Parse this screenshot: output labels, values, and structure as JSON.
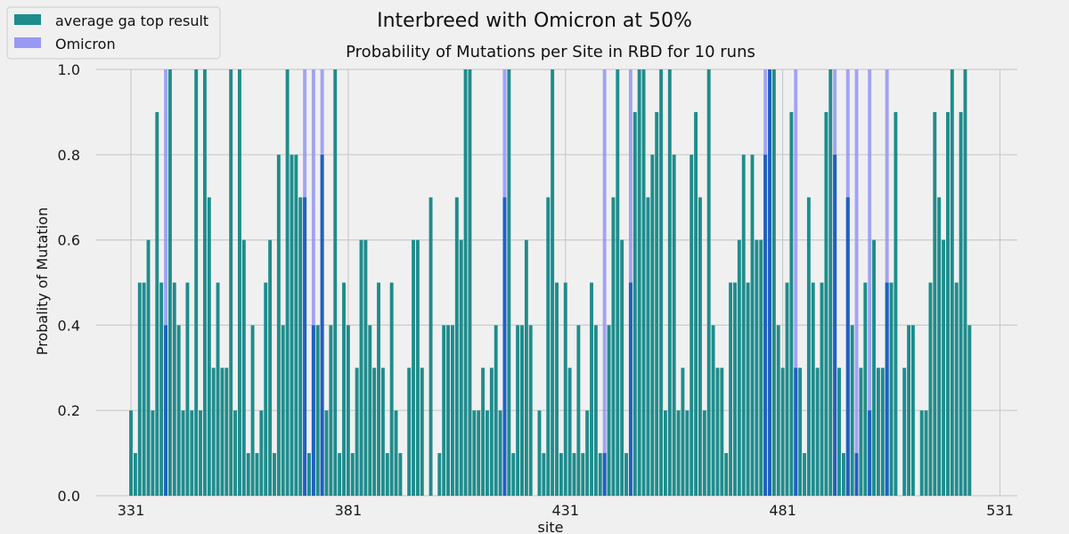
{
  "suptitle": "Interbreed with Omicron at 50%",
  "chart_data": {
    "type": "bar",
    "title": "Probability of Mutations per Site in RBD for 10 runs",
    "xlabel": "site",
    "ylabel": "Probality of Mutation",
    "xlim": [
      323,
      535
    ],
    "ylim": [
      0,
      1.0
    ],
    "xticks": [
      331,
      381,
      431,
      481,
      531
    ],
    "yticks": [
      "0.0",
      "0.2",
      "0.4",
      "0.6",
      "0.8",
      "1.0"
    ],
    "grid": true,
    "legend_position": "top-left",
    "colors": {
      "ga": "#1f8c8c",
      "omicron": "#9999f5",
      "overlap": "#2060c0",
      "background": "#f0f0f0",
      "grid": "#cbcbcb"
    },
    "series": [
      {
        "name": "average ga top result",
        "start_site": 331,
        "values": [
          0.2,
          0.1,
          0.5,
          0.5,
          0.6,
          0.2,
          0.9,
          0.5,
          0.4,
          1.0,
          0.5,
          0.4,
          0.2,
          0.5,
          0.2,
          1.0,
          0.2,
          1.0,
          0.7,
          0.3,
          0.5,
          0.3,
          0.3,
          1.0,
          0.2,
          1.0,
          0.6,
          0.1,
          0.4,
          0.1,
          0.2,
          0.5,
          0.6,
          0.1,
          0.8,
          0.4,
          1.0,
          0.8,
          0.8,
          0.7,
          0.7,
          0.1,
          0.4,
          0.4,
          0.8,
          0.2,
          0.4,
          1.0,
          0.1,
          0.5,
          0.4,
          0.1,
          0.3,
          0.6,
          0.6,
          0.4,
          0.3,
          0.5,
          0.3,
          0.1,
          0.5,
          0.2,
          0.1,
          0.0,
          0.3,
          0.6,
          0.6,
          0.3,
          0.0,
          0.7,
          0.0,
          0.1,
          0.4,
          0.4,
          0.4,
          0.7,
          0.6,
          1.0,
          1.0,
          0.2,
          0.2,
          0.3,
          0.2,
          0.3,
          0.4,
          0.2,
          0.7,
          1.0,
          0.1,
          0.4,
          0.4,
          0.6,
          0.4,
          0.0,
          0.2,
          0.1,
          0.7,
          1.0,
          0.5,
          0.1,
          0.5,
          0.3,
          0.1,
          0.4,
          0.1,
          0.2,
          0.5,
          0.4,
          0.1,
          0.1,
          0.4,
          0.7,
          1.0,
          0.6,
          0.1,
          0.5,
          0.9,
          1.0,
          1.0,
          0.7,
          0.8,
          0.9,
          1.0,
          0.2,
          1.0,
          0.8,
          0.2,
          0.3,
          0.2,
          0.8,
          0.9,
          0.7,
          0.2,
          1.0,
          0.4,
          0.3,
          0.3,
          0.1,
          0.5,
          0.5,
          0.6,
          0.8,
          0.5,
          0.8,
          0.6,
          0.6,
          0.8,
          1.0,
          1.0,
          0.4,
          0.3,
          0.5,
          0.9,
          0.3,
          0.3,
          0.1,
          0.7,
          0.5,
          0.3,
          0.5,
          0.9,
          1.0,
          0.8,
          0.3,
          0.1,
          0.7,
          0.4,
          0.1,
          0.3,
          0.5,
          0.2,
          0.6,
          0.3,
          0.3,
          0.5,
          0.5,
          0.9,
          0.0,
          0.3,
          0.4,
          0.4,
          0.0,
          0.2,
          0.2,
          0.5,
          0.9,
          0.7,
          0.6,
          0.9,
          1.0,
          0.5,
          0.9,
          1.0,
          0.4
        ]
      },
      {
        "name": "Omicron",
        "sites": [
          339,
          371,
          373,
          375,
          417,
          440,
          446,
          477,
          478,
          484,
          493,
          496,
          498,
          501,
          505
        ],
        "value": 1.0
      }
    ]
  }
}
